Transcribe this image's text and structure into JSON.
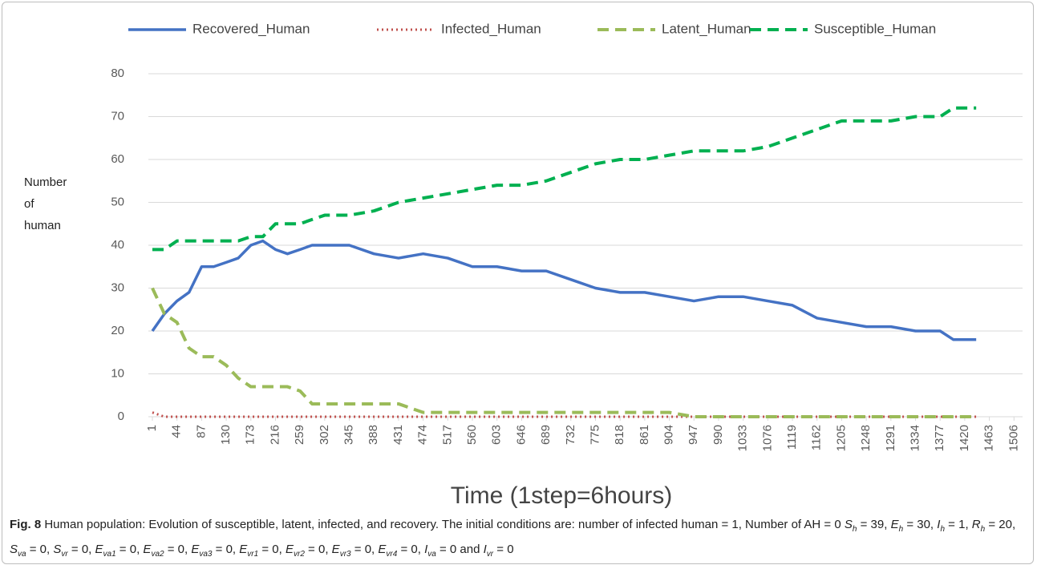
{
  "chart_data": {
    "type": "line",
    "legend": "top",
    "grid": true,
    "y_label": [
      "Number",
      "of",
      "human"
    ],
    "x_label": "Time (1step=6hours)",
    "x": [
      1,
      22,
      44,
      65,
      87,
      108,
      130,
      151,
      173,
      194,
      216,
      237,
      259,
      280,
      302,
      345,
      388,
      431,
      474,
      517,
      560,
      603,
      646,
      689,
      732,
      775,
      818,
      861,
      904,
      947,
      990,
      1033,
      1076,
      1119,
      1162,
      1205,
      1248,
      1291,
      1334,
      1377,
      1400,
      1440
    ],
    "series": [
      {
        "name": "Recovered_Human",
        "color": "#4472c4",
        "style": "solid",
        "values": [
          20,
          24,
          27,
          29,
          35,
          35,
          36,
          37,
          40,
          41,
          39,
          38,
          39,
          40,
          40,
          40,
          38,
          37,
          38,
          37,
          35,
          35,
          34,
          34,
          32,
          30,
          29,
          29,
          28,
          27,
          28,
          28,
          27,
          26,
          23,
          22,
          21,
          21,
          20,
          20,
          18,
          18
        ]
      },
      {
        "name": "Infected_Human",
        "color": "#c0504d",
        "style": "dotted",
        "values": [
          1,
          0,
          0,
          0,
          0,
          0,
          0,
          0,
          0,
          0,
          0,
          0,
          0,
          0,
          0,
          0,
          0,
          0,
          0,
          0,
          0,
          0,
          0,
          0,
          0,
          0,
          0,
          0,
          0,
          0,
          0,
          0,
          0,
          0,
          0,
          0,
          0,
          0,
          0,
          0,
          0,
          0
        ]
      },
      {
        "name": "Latent_Human",
        "color": "#9bbb59",
        "style": "dashed",
        "values": [
          30,
          24,
          22,
          16,
          14,
          14,
          12,
          9,
          7,
          7,
          7,
          7,
          6,
          3,
          3,
          3,
          3,
          3,
          1,
          1,
          1,
          1,
          1,
          1,
          1,
          1,
          1,
          1,
          1,
          0,
          0,
          0,
          0,
          0,
          0,
          0,
          0,
          0,
          0,
          0,
          0,
          0
        ]
      },
      {
        "name": "Susceptible_Human",
        "color": "#00b050",
        "style": "dashed",
        "values": [
          39,
          39,
          41,
          41,
          41,
          41,
          41,
          41,
          42,
          42,
          45,
          45,
          45,
          46,
          47,
          47,
          48,
          50,
          51,
          52,
          53,
          54,
          54,
          55,
          57,
          59,
          60,
          60,
          61,
          62,
          62,
          62,
          63,
          65,
          67,
          69,
          69,
          69,
          70,
          70,
          72,
          72
        ]
      }
    ],
    "xlim": [
      -6,
      1521
    ],
    "xticks": [
      1,
      44,
      87,
      130,
      173,
      216,
      259,
      302,
      345,
      388,
      431,
      474,
      517,
      560,
      603,
      646,
      689,
      732,
      775,
      818,
      861,
      904,
      947,
      990,
      1033,
      1076,
      1119,
      1162,
      1205,
      1248,
      1291,
      1334,
      1377,
      1420,
      1463,
      1506
    ],
    "ylim": [
      0,
      80
    ],
    "yticks": [
      0,
      10,
      20,
      30,
      40,
      50,
      60,
      70,
      80
    ]
  },
  "caption": {
    "label": "Fig. 8",
    "parts": [
      " Human population: Evolution of susceptible, latent, infected, and recovery. The initial conditions are: number of infected human = 1, Number of AH = 0 ",
      {
        "sym": "S",
        "sub": "h"
      },
      " = 39, ",
      {
        "sym": "E",
        "sub": "h"
      },
      " = 30, ",
      {
        "sym": "I",
        "sub": "h"
      },
      " = 1, ",
      {
        "sym": "R",
        "sub": "h"
      },
      " = 20, ",
      {
        "sym": "S",
        "sub": "va"
      },
      " = 0, ",
      {
        "sym": "S",
        "sub": "vr"
      },
      " = 0, ",
      {
        "sym": "E",
        "sub": "va1"
      },
      " = 0, ",
      {
        "sym": "E",
        "sub": "va2"
      },
      " = 0, ",
      {
        "sym": "E",
        "sub": "va3"
      },
      " = 0, ",
      {
        "sym": "E",
        "sub": "vr1"
      },
      " = 0, ",
      {
        "sym": "E",
        "sub": "vr2"
      },
      " = 0, ",
      {
        "sym": "E",
        "sub": "vr3"
      },
      " = 0, ",
      {
        "sym": "E",
        "sub": "vr4"
      },
      " = 0, ",
      {
        "sym": "I",
        "sub": "va"
      },
      " = 0 and ",
      {
        "sym": "I",
        "sub": "vr"
      },
      " = 0"
    ]
  }
}
